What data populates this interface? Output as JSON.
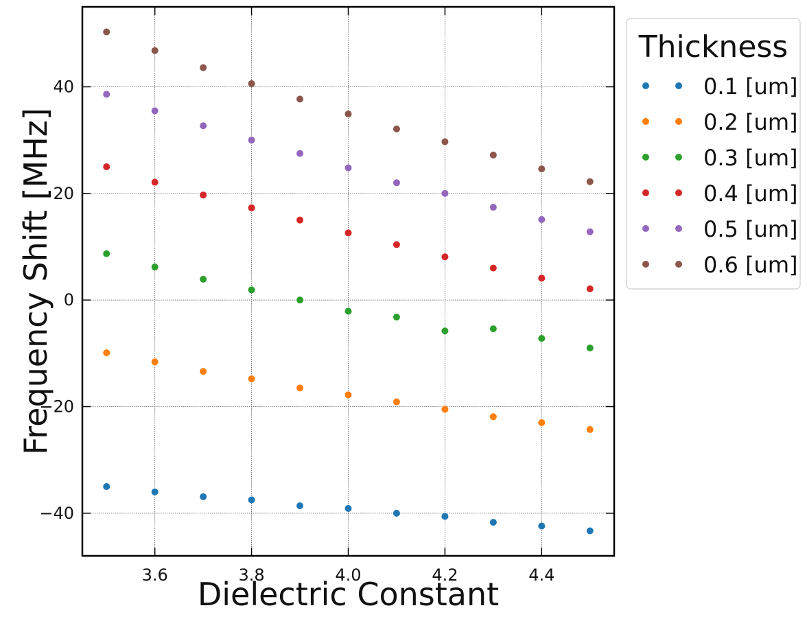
{
  "chart_data": {
    "type": "scatter",
    "xlabel": "Dielectric Constant",
    "ylabel": "Frequency Shift [MHz]",
    "xlim": [
      3.45,
      4.55
    ],
    "ylim": [
      -48,
      55
    ],
    "x_ticks": [
      3.6,
      3.8,
      4.0,
      4.2,
      4.4
    ],
    "x_tick_labels": [
      "3.6",
      "3.8",
      "4.0",
      "4.2",
      "4.4"
    ],
    "y_ticks": [
      -40,
      -20,
      0,
      20,
      40
    ],
    "y_tick_labels": [
      "−40",
      "−20",
      "0",
      "20",
      "40"
    ],
    "grid": true,
    "grid_style": "dotted",
    "legend": {
      "title": "Thickness",
      "placement": "outside-top-right"
    },
    "x": [
      3.5,
      3.6,
      3.7,
      3.8,
      3.9,
      4.0,
      4.1,
      4.2,
      4.3,
      4.4,
      4.5
    ],
    "series": [
      {
        "name": "0.1 [um]",
        "color": "#1f77b4",
        "values": [
          -35.0,
          -36.0,
          -36.9,
          -37.5,
          -38.6,
          -39.1,
          -40.0,
          -40.6,
          -41.7,
          -42.4,
          -43.3
        ]
      },
      {
        "name": "0.2 [um]",
        "color": "#ff7f0e",
        "values": [
          -9.9,
          -11.6,
          -13.4,
          -14.8,
          -16.5,
          -17.8,
          -19.1,
          -20.5,
          -21.9,
          -23.0,
          -24.3
        ]
      },
      {
        "name": "0.3 [um]",
        "color": "#2ca02c",
        "values": [
          8.7,
          6.2,
          3.9,
          1.9,
          0.0,
          -2.1,
          -3.2,
          -5.8,
          -5.4,
          -7.2,
          -9.0
        ]
      },
      {
        "name": "0.4 [um]",
        "color": "#d62728",
        "values": [
          25.0,
          22.1,
          19.7,
          17.3,
          15.0,
          12.6,
          10.4,
          8.1,
          6.0,
          4.1,
          2.1
        ]
      },
      {
        "name": "0.5 [um]",
        "color": "#9467bd",
        "values": [
          38.6,
          35.5,
          32.7,
          30.0,
          27.5,
          24.8,
          22.0,
          20.0,
          17.4,
          15.1,
          12.8
        ]
      },
      {
        "name": "0.6 [um]",
        "color": "#8c564b",
        "values": [
          50.3,
          46.8,
          43.6,
          40.6,
          37.7,
          34.9,
          32.1,
          29.7,
          27.2,
          24.6,
          22.2
        ]
      }
    ]
  }
}
